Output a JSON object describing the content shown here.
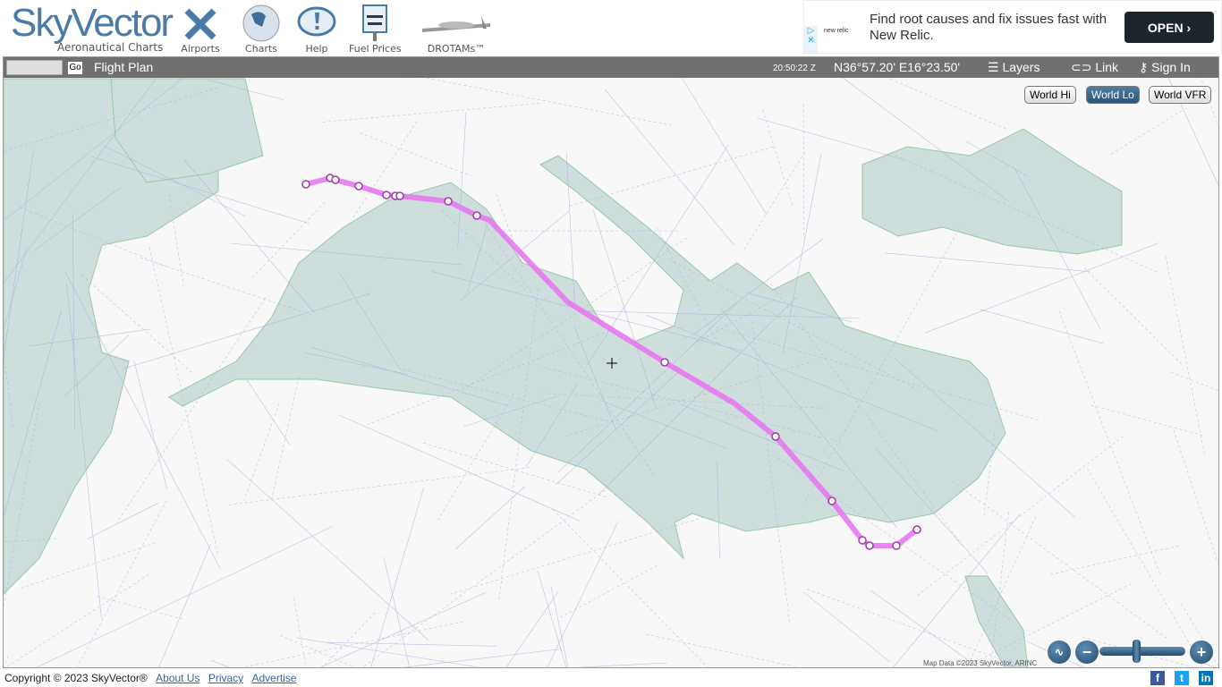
{
  "header": {
    "logo_text": "SkyVector",
    "logo_sub": "Aeronautical Charts",
    "nav": [
      {
        "label": "Airports",
        "icon": "airport-icon"
      },
      {
        "label": "Charts",
        "icon": "globe-icon"
      },
      {
        "label": "Help",
        "icon": "help-icon"
      },
      {
        "label": "Fuel Prices",
        "icon": "fuel-sign-icon",
        "sign": "100LL Jet A"
      },
      {
        "label": "DROTAMs™",
        "icon": "drone-icon"
      }
    ]
  },
  "ad": {
    "text": "Find root causes and fix issues fast with New Relic.",
    "brand": "new relic",
    "button": "OPEN"
  },
  "toolbar": {
    "go": "Go",
    "search_value": "",
    "flight_plan": "Flight Plan",
    "time": "20:50:22 Z",
    "coords": "N36°57.20' E16°23.50'",
    "layers": "Layers",
    "link": "Link",
    "sign_in": "Sign In"
  },
  "layers": [
    {
      "label": "World Hi",
      "active": false
    },
    {
      "label": "World Lo",
      "active": true
    },
    {
      "label": "World VFR",
      "active": false
    }
  ],
  "map": {
    "attribution": "Map Data ©2023 SkyVector, ARINC",
    "route_color": "#e879f0",
    "zoom_level_fraction": 0.4
  },
  "zoom": {
    "minus": "−",
    "plus": "+"
  },
  "footer": {
    "copyright": "Copyright © 2023 SkyVector®",
    "links": [
      "About Us",
      "Privacy",
      "Advertise"
    ]
  },
  "social": [
    {
      "label": "f",
      "color": "#3b5998"
    },
    {
      "label": "t",
      "color": "#1da1f2"
    },
    {
      "label": "in",
      "color": "#0077b5"
    }
  ]
}
